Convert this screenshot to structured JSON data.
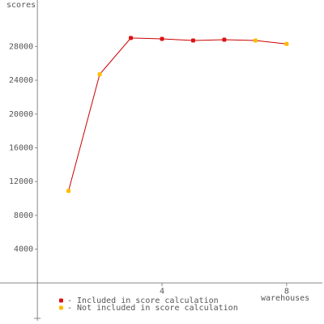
{
  "chart_data": {
    "type": "line",
    "y_label": "scores",
    "x_label": "warehouses",
    "x": [
      1,
      2,
      3,
      4,
      5,
      6,
      7,
      8
    ],
    "values": [
      10900,
      24700,
      29000,
      28900,
      28700,
      28800,
      28700,
      28300
    ],
    "included": [
      false,
      false,
      true,
      true,
      true,
      true,
      false,
      false
    ],
    "line_color": "#cc0000",
    "legend": [
      {
        "name": "- Included in score calculation",
        "color": "#dd1111"
      },
      {
        "name": "- Not included in score calculation",
        "color": "#ffbb00"
      }
    ],
    "xlim": [
      -1.2,
      9.2
    ],
    "xticks": [
      4,
      8
    ],
    "ylim": [
      -4000,
      33500
    ],
    "yticks": [
      4000,
      8000,
      12000,
      16000,
      20000,
      24000,
      28000
    ]
  }
}
